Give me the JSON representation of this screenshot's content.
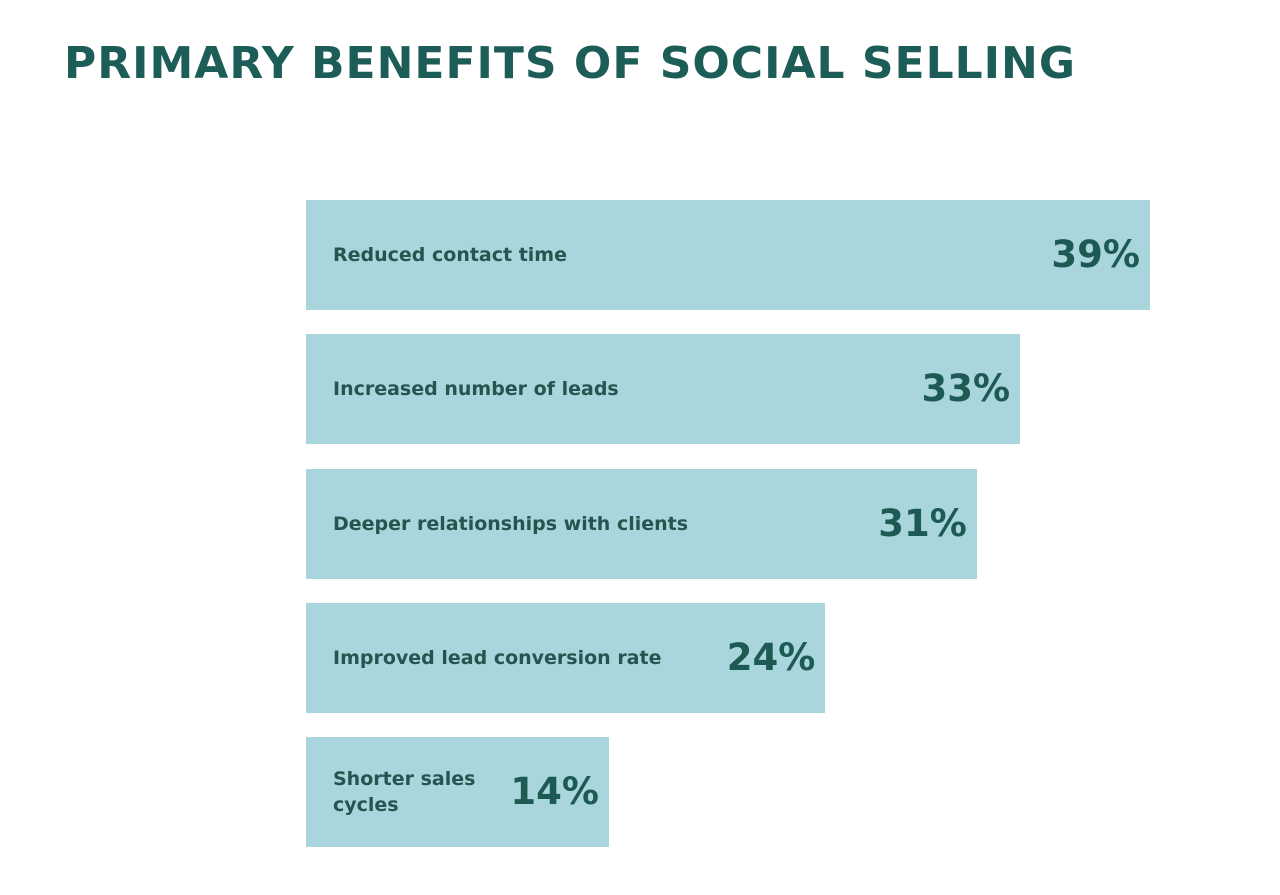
{
  "chart_data": {
    "type": "bar",
    "orientation": "horizontal",
    "title": "PRIMARY BENEFITS OF SOCIAL SELLING",
    "categories": [
      "Reduced contact time",
      "Increased number of leads",
      "Deeper relationships with clients",
      "Improved lead conversion rate",
      "Shorter sales cycles"
    ],
    "values": [
      39,
      33,
      31,
      24,
      14
    ],
    "value_labels": [
      "39%",
      "33%",
      "31%",
      "24%",
      "14%"
    ],
    "color": "#a9d5dc"
  }
}
